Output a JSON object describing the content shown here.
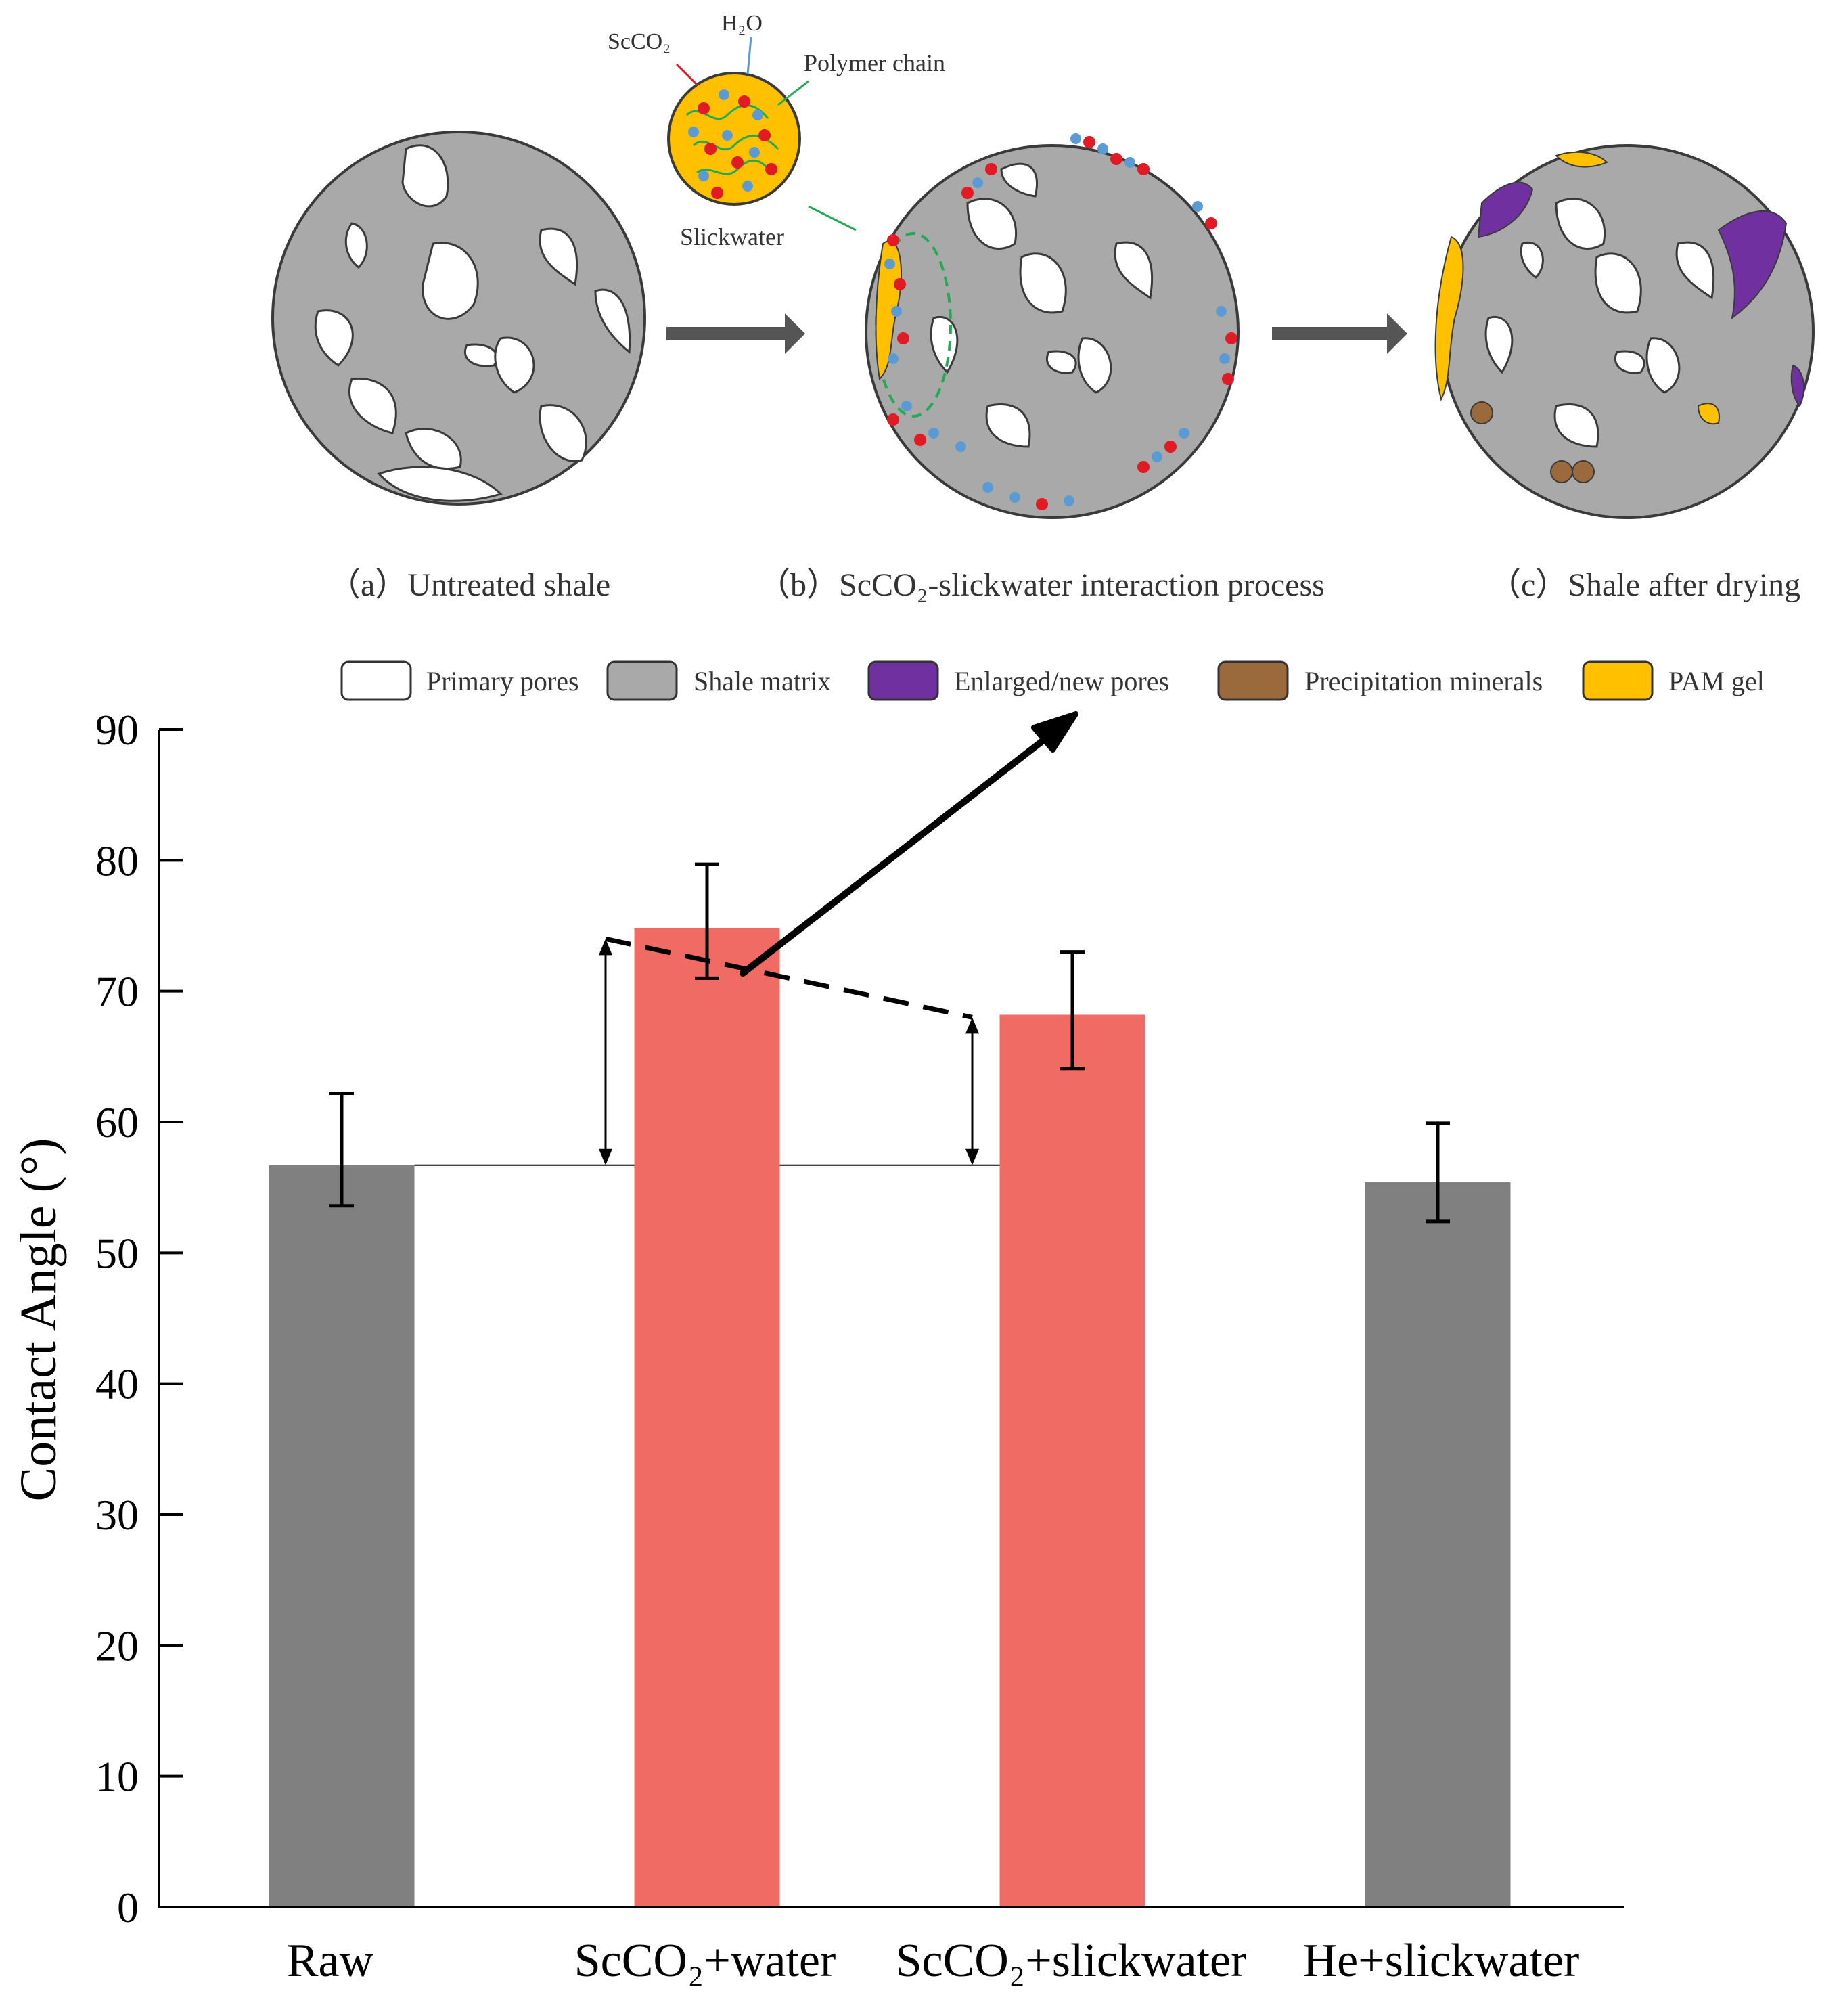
{
  "schematic": {
    "panels": [
      {
        "label": "（a）Untreated shale"
      },
      {
        "label": "（b）ScCO₂-slickwater interaction process"
      },
      {
        "label": "（c）Shale after drying"
      }
    ],
    "inset": {
      "title": "Slickwater",
      "callout_scco2": "ScCO₂",
      "callout_h2o": "H₂O",
      "callout_polymer": "Polymer chain"
    }
  },
  "legend": {
    "items": [
      {
        "label": "Primary pores",
        "color": "#ffffff"
      },
      {
        "label": "Shale matrix",
        "color": "#a9a9a9"
      },
      {
        "label": "Enlarged/new pores",
        "color": "#7030a0"
      },
      {
        "label": "Precipitation minerals",
        "color": "#9b6a3c"
      },
      {
        "label": "PAM gel",
        "color": "#ffc000"
      }
    ]
  },
  "chart_data": {
    "type": "bar",
    "title": "",
    "xlabel": "",
    "ylabel": "Contact Angle (°)",
    "ylim": [
      0,
      90
    ],
    "yticks": [
      "0",
      "10",
      "20",
      "30",
      "40",
      "50",
      "60",
      "70",
      "80",
      "90"
    ],
    "grid": false,
    "categories": [
      "Raw",
      "ScCO₂+water",
      "ScCO₂+slickwater",
      "He+slickwater"
    ],
    "values": [
      56.7,
      74.8,
      68.2,
      55.4
    ],
    "error_upper": [
      62.2,
      79.7,
      73.0,
      59.9
    ],
    "error_lower": [
      53.6,
      71.0,
      64.1,
      52.4
    ],
    "bar_colors": [
      "#808080",
      "#f06b64",
      "#f06b64",
      "#808080"
    ],
    "annotations": {
      "baseline_value": 56.7,
      "dashed_trend": [
        74.0,
        68.0
      ]
    }
  }
}
